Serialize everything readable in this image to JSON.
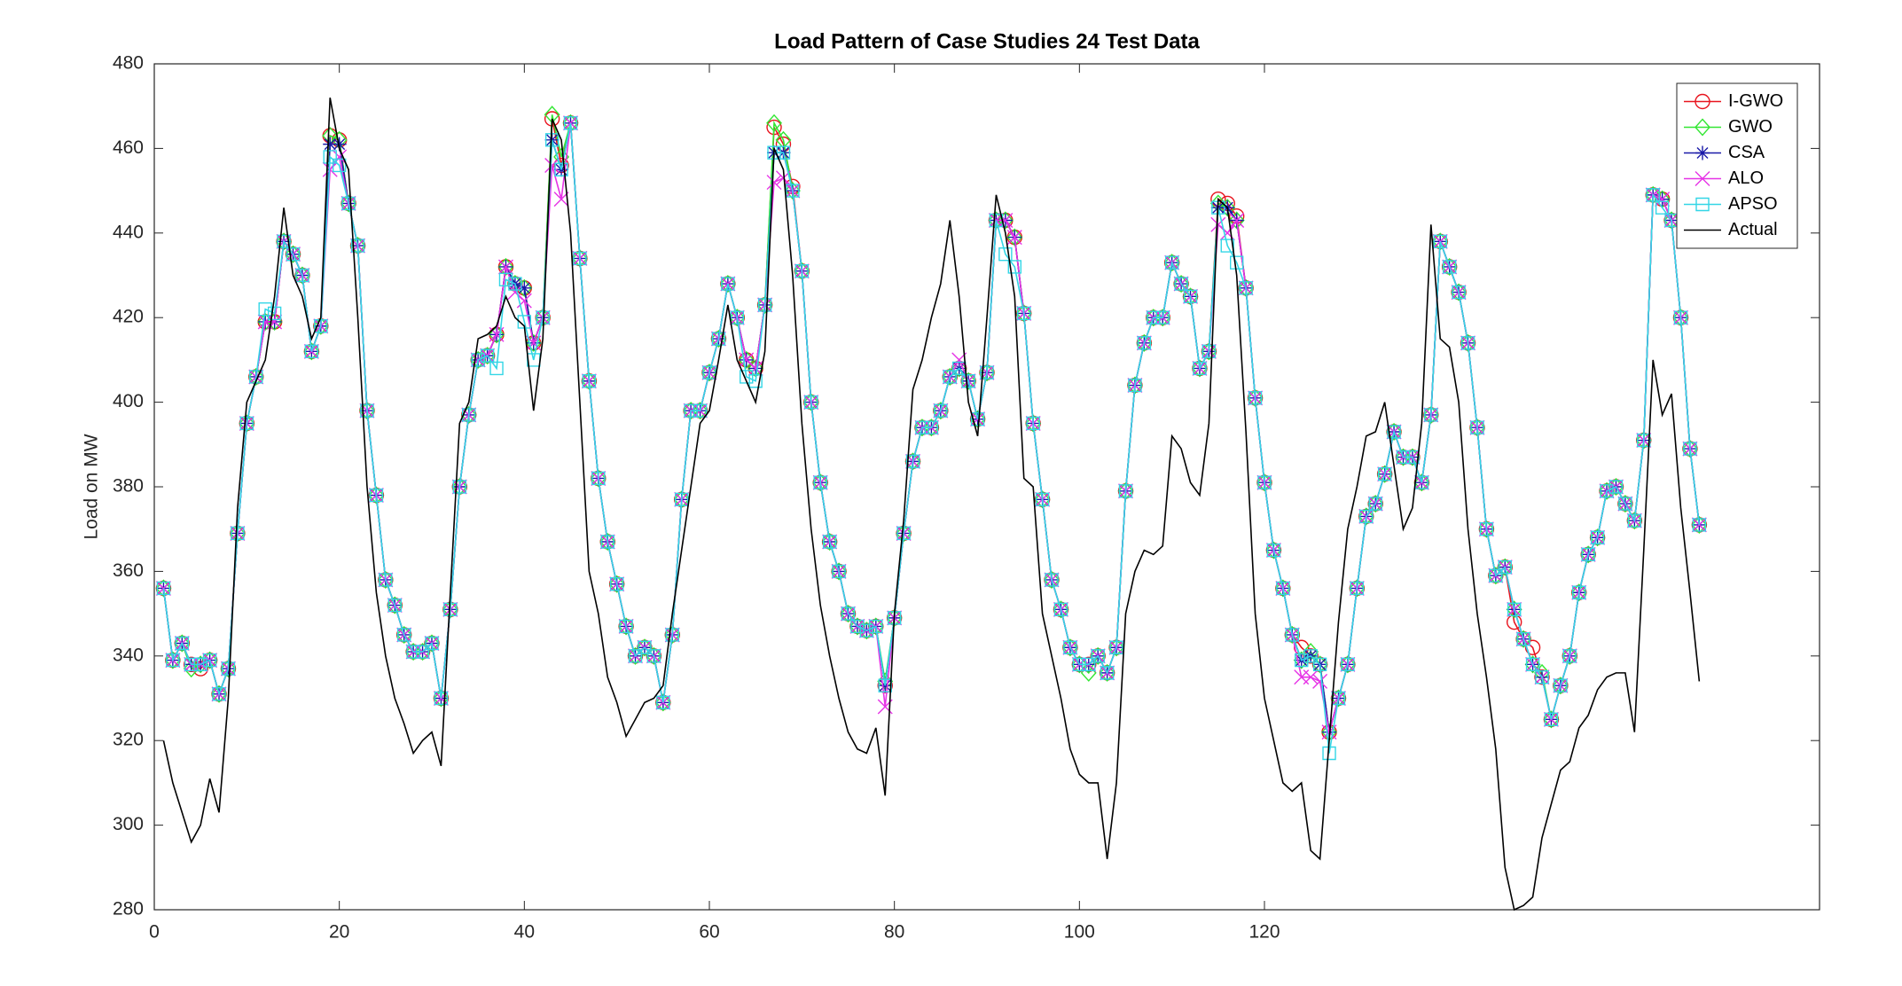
{
  "chart_data": {
    "type": "line",
    "title": "Load Pattern of Case Studies 24 Test Data",
    "y_label": "Load on MW",
    "xlim": [
      0,
      180
    ],
    "xticks": [
      0,
      20,
      40,
      60,
      80,
      100,
      120
    ],
    "ylim": [
      280,
      480
    ],
    "yticks": [
      280,
      300,
      320,
      340,
      360,
      380,
      400,
      420,
      440,
      460,
      480
    ],
    "legend": "upper right",
    "x": [
      1,
      2,
      3,
      4,
      5,
      6,
      7,
      8,
      9,
      10,
      11,
      12,
      13,
      14,
      15,
      16,
      17,
      18,
      19,
      20,
      21,
      22,
      23,
      24,
      25,
      26,
      27,
      28,
      29,
      30,
      31,
      32,
      33,
      34,
      35,
      36,
      37,
      38,
      39,
      40,
      41,
      42,
      43,
      44,
      45,
      46,
      47,
      48,
      49,
      50,
      51,
      52,
      53,
      54,
      55,
      56,
      57,
      58,
      59,
      60,
      61,
      62,
      63,
      64,
      65,
      66,
      67,
      68,
      69,
      70,
      71,
      72,
      73,
      74,
      75,
      76,
      77,
      78,
      79,
      80,
      81,
      82,
      83,
      84,
      85,
      86,
      87,
      88,
      89,
      90,
      91,
      92,
      93,
      94,
      95,
      96,
      97,
      98,
      99,
      100,
      101,
      102,
      103,
      104,
      105,
      106,
      107,
      108,
      109,
      110,
      111,
      112,
      113,
      114,
      115,
      116,
      117,
      118,
      119,
      120,
      121,
      122,
      123,
      124,
      125,
      126,
      127,
      128,
      129,
      130,
      131,
      132,
      133,
      134,
      135,
      136,
      137,
      138,
      139,
      140,
      141,
      142,
      143,
      144,
      145,
      146,
      147,
      148,
      149,
      150,
      151,
      152,
      153,
      154,
      155,
      156,
      157,
      158,
      159,
      160,
      161,
      162,
      163,
      164,
      165,
      166,
      167
    ],
    "series": [
      {
        "name": "I-GWO",
        "color": "#e8141e",
        "marker": "o",
        "values": [
          356,
          339,
          343,
          338,
          337,
          339,
          331,
          337,
          369,
          395,
          406,
          419,
          419,
          438,
          435,
          430,
          412,
          418,
          463,
          462,
          447,
          437,
          398,
          378,
          358,
          352,
          345,
          341,
          341,
          343,
          330,
          351,
          380,
          397,
          410,
          411,
          416,
          432,
          428,
          427,
          414,
          420,
          467,
          456,
          466,
          434,
          405,
          382,
          367,
          357,
          347,
          340,
          342,
          340,
          329,
          345,
          377,
          398,
          398,
          407,
          415,
          428,
          420,
          410,
          408,
          423,
          465,
          461,
          451,
          431,
          400,
          381,
          367,
          360,
          350,
          347,
          346,
          347,
          333,
          349,
          369,
          386,
          394,
          394,
          398,
          406,
          408,
          405,
          396,
          407,
          443,
          443,
          439,
          421,
          395,
          377,
          358,
          351,
          342,
          338,
          338,
          340,
          336,
          342,
          379,
          404,
          414,
          420,
          420,
          433,
          428,
          425,
          408,
          412,
          448,
          447,
          444,
          427,
          401,
          381,
          365,
          356,
          345,
          342,
          340,
          338,
          322,
          330,
          338,
          356,
          373,
          376,
          383,
          393,
          387,
          387,
          381,
          397,
          438,
          432,
          426,
          414,
          394,
          370,
          359,
          361,
          348,
          344,
          342,
          335,
          325,
          333,
          340,
          355,
          364,
          368,
          379,
          380,
          376,
          372,
          391,
          449,
          448,
          443,
          420,
          389,
          371
        ]
      },
      {
        "name": "GWO",
        "color": "#33e633",
        "marker": "d",
        "values": [
          356,
          339,
          343,
          337,
          338,
          339,
          331,
          337,
          369,
          395,
          406,
          419,
          419,
          438,
          435,
          430,
          412,
          418,
          463,
          462,
          447,
          437,
          398,
          378,
          358,
          352,
          345,
          341,
          341,
          343,
          330,
          351,
          380,
          397,
          410,
          411,
          416,
          432,
          428,
          427,
          414,
          420,
          468,
          458,
          466,
          434,
          405,
          382,
          367,
          357,
          347,
          340,
          342,
          340,
          329,
          345,
          377,
          398,
          398,
          407,
          415,
          428,
          420,
          410,
          408,
          423,
          466,
          462,
          450,
          431,
          400,
          381,
          367,
          360,
          350,
          347,
          346,
          347,
          334,
          349,
          369,
          386,
          394,
          394,
          398,
          406,
          408,
          405,
          396,
          407,
          443,
          443,
          439,
          421,
          395,
          377,
          358,
          351,
          342,
          338,
          336,
          340,
          336,
          342,
          379,
          404,
          414,
          420,
          420,
          433,
          428,
          425,
          408,
          412,
          447,
          446,
          443,
          427,
          401,
          381,
          365,
          356,
          345,
          339,
          341,
          338,
          322,
          330,
          338,
          356,
          373,
          376,
          383,
          393,
          387,
          387,
          381,
          397,
          438,
          432,
          426,
          414,
          394,
          370,
          359,
          361,
          351,
          344,
          338,
          336,
          325,
          333,
          340,
          355,
          364,
          368,
          379,
          380,
          376,
          372,
          391,
          449,
          448,
          443,
          420,
          389,
          371
        ]
      },
      {
        "name": "CSA",
        "color": "#1a1aa8",
        "marker": "*",
        "values": [
          356,
          339,
          343,
          338,
          338,
          339,
          331,
          337,
          369,
          395,
          406,
          419,
          419,
          438,
          435,
          430,
          412,
          418,
          461,
          461,
          447,
          437,
          398,
          378,
          358,
          352,
          345,
          341,
          341,
          343,
          330,
          351,
          380,
          397,
          410,
          411,
          416,
          432,
          428,
          427,
          414,
          420,
          462,
          455,
          466,
          434,
          405,
          382,
          367,
          357,
          347,
          340,
          342,
          340,
          329,
          345,
          377,
          398,
          398,
          407,
          415,
          428,
          420,
          410,
          408,
          423,
          459,
          459,
          450,
          431,
          400,
          381,
          367,
          360,
          350,
          347,
          346,
          347,
          333,
          349,
          369,
          386,
          394,
          394,
          398,
          406,
          408,
          405,
          396,
          407,
          443,
          443,
          439,
          421,
          395,
          377,
          358,
          351,
          342,
          338,
          338,
          340,
          336,
          342,
          379,
          404,
          414,
          420,
          420,
          433,
          428,
          425,
          408,
          412,
          446,
          446,
          443,
          427,
          401,
          381,
          365,
          356,
          345,
          339,
          340,
          338,
          322,
          330,
          338,
          356,
          373,
          376,
          383,
          393,
          387,
          387,
          381,
          397,
          438,
          432,
          426,
          414,
          394,
          370,
          359,
          361,
          351,
          344,
          338,
          335,
          325,
          333,
          340,
          355,
          364,
          368,
          379,
          380,
          376,
          372,
          391,
          449,
          448,
          443,
          420,
          389,
          371
        ]
      },
      {
        "name": "ALO",
        "color": "#e633e6",
        "marker": "x",
        "values": [
          356,
          339,
          343,
          338,
          338,
          339,
          331,
          337,
          369,
          395,
          406,
          419,
          419,
          438,
          435,
          430,
          412,
          418,
          455,
          458,
          447,
          437,
          398,
          378,
          358,
          352,
          345,
          341,
          341,
          343,
          330,
          351,
          380,
          397,
          410,
          411,
          416,
          432,
          426,
          424,
          414,
          420,
          456,
          448,
          466,
          434,
          405,
          382,
          367,
          357,
          347,
          340,
          342,
          340,
          329,
          345,
          377,
          398,
          398,
          407,
          415,
          428,
          420,
          410,
          408,
          423,
          452,
          453,
          450,
          431,
          400,
          381,
          367,
          360,
          350,
          347,
          346,
          347,
          328,
          349,
          369,
          386,
          394,
          394,
          398,
          406,
          410,
          405,
          396,
          407,
          443,
          443,
          439,
          421,
          395,
          377,
          358,
          351,
          342,
          338,
          338,
          340,
          336,
          342,
          379,
          404,
          414,
          420,
          420,
          433,
          428,
          425,
          408,
          412,
          442,
          440,
          443,
          427,
          401,
          381,
          365,
          356,
          345,
          335,
          335,
          334,
          322,
          330,
          338,
          356,
          373,
          376,
          383,
          393,
          387,
          387,
          381,
          397,
          438,
          432,
          426,
          414,
          394,
          370,
          359,
          361,
          351,
          344,
          338,
          335,
          325,
          333,
          340,
          355,
          364,
          368,
          379,
          380,
          376,
          372,
          391,
          449,
          448,
          443,
          420,
          389,
          371
        ]
      },
      {
        "name": "APSO",
        "color": "#33d6e6",
        "marker": "s",
        "values": [
          356,
          339,
          343,
          338,
          338,
          339,
          331,
          337,
          369,
          395,
          406,
          422,
          421,
          438,
          435,
          430,
          412,
          418,
          458,
          456,
          447,
          437,
          398,
          378,
          358,
          352,
          345,
          341,
          341,
          343,
          330,
          351,
          380,
          397,
          410,
          411,
          408,
          429,
          428,
          419,
          410,
          420,
          462,
          455,
          466,
          434,
          405,
          382,
          367,
          357,
          347,
          340,
          342,
          340,
          329,
          345,
          377,
          398,
          398,
          407,
          415,
          428,
          420,
          406,
          405,
          423,
          459,
          459,
          450,
          431,
          400,
          381,
          367,
          360,
          350,
          347,
          346,
          347,
          333,
          349,
          369,
          386,
          394,
          394,
          398,
          406,
          408,
          405,
          396,
          407,
          443,
          435,
          432,
          421,
          395,
          377,
          358,
          351,
          342,
          338,
          338,
          340,
          336,
          342,
          379,
          404,
          414,
          420,
          420,
          433,
          428,
          425,
          408,
          412,
          446,
          437,
          433,
          427,
          401,
          381,
          365,
          356,
          345,
          339,
          340,
          338,
          317,
          330,
          338,
          356,
          373,
          376,
          383,
          393,
          387,
          387,
          381,
          397,
          438,
          432,
          426,
          414,
          394,
          370,
          359,
          361,
          351,
          344,
          338,
          335,
          325,
          333,
          340,
          355,
          364,
          368,
          379,
          380,
          376,
          372,
          391,
          449,
          446,
          443,
          420,
          389,
          371
        ]
      },
      {
        "name": "Actual",
        "color": "#000000",
        "values": [
          320,
          310,
          303,
          296,
          300,
          311,
          303,
          330,
          375,
          400,
          405,
          410,
          425,
          446,
          430,
          425,
          415,
          420,
          472,
          460,
          455,
          420,
          380,
          355,
          340,
          330,
          324,
          317,
          320,
          322,
          314,
          355,
          395,
          400,
          415,
          416,
          418,
          425,
          420,
          418,
          398,
          415,
          467,
          462,
          440,
          400,
          360,
          350,
          335,
          329,
          321,
          325,
          329,
          330,
          333,
          350,
          365,
          380,
          395,
          398,
          410,
          423,
          410,
          405,
          400,
          412,
          460,
          455,
          430,
          395,
          370,
          352,
          340,
          330,
          322,
          318,
          317,
          323,
          307,
          350,
          372,
          403,
          410,
          420,
          428,
          443,
          425,
          400,
          392,
          420,
          449,
          440,
          425,
          382,
          380,
          350,
          340,
          330,
          318,
          312,
          310,
          310,
          292,
          310,
          350,
          360,
          365,
          364,
          366,
          392,
          389,
          381,
          378,
          395,
          448,
          446,
          430,
          393,
          350,
          330,
          320,
          310,
          308,
          310,
          294,
          292,
          320,
          348,
          370,
          380,
          392,
          393,
          400,
          385,
          370,
          375,
          395,
          442,
          415,
          413,
          400,
          370,
          350,
          335,
          318,
          290,
          280,
          281,
          283,
          297,
          305,
          313,
          315,
          323,
          326,
          332,
          335,
          336,
          336,
          322,
          365,
          410,
          397,
          402,
          375,
          355,
          334
        ]
      }
    ]
  }
}
